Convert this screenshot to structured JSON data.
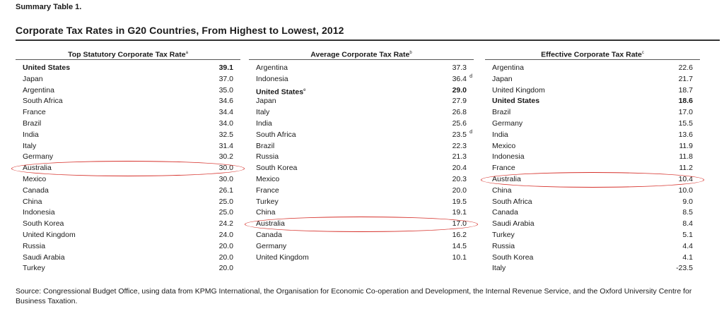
{
  "label": "Summary Table 1.",
  "title": "Corporate Tax Rates in G20 Countries, From Highest to Lowest, 2012",
  "panels": [
    {
      "header": "Top Statutory Corporate Tax Rate",
      "header_note": "a",
      "rows": [
        {
          "country": "United States",
          "value": "39.1",
          "bold": true
        },
        {
          "country": "Japan",
          "value": "37.0"
        },
        {
          "country": "Argentina",
          "value": "35.0"
        },
        {
          "country": "South Africa",
          "value": "34.6"
        },
        {
          "country": "France",
          "value": "34.4"
        },
        {
          "country": "Brazil",
          "value": "34.0"
        },
        {
          "country": "India",
          "value": "32.5"
        },
        {
          "country": "Italy",
          "value": "31.4"
        },
        {
          "country": "Germany",
          "value": "30.2"
        },
        {
          "country": "Australia",
          "value": "30.0",
          "highlight": true
        },
        {
          "country": "Mexico",
          "value": "30.0"
        },
        {
          "country": "Canada",
          "value": "26.1"
        },
        {
          "country": "China",
          "value": "25.0"
        },
        {
          "country": "Indonesia",
          "value": "25.0"
        },
        {
          "country": "South Korea",
          "value": "24.2"
        },
        {
          "country": "United Kingdom",
          "value": "24.0"
        },
        {
          "country": "Russia",
          "value": "20.0"
        },
        {
          "country": "Saudi Arabia",
          "value": "20.0"
        },
        {
          "country": "Turkey",
          "value": "20.0"
        }
      ]
    },
    {
      "header": "Average Corporate Tax Rate",
      "header_note": "b",
      "rows": [
        {
          "country": "Argentina",
          "value": "37.3"
        },
        {
          "country": "Indonesia",
          "value": "36.4",
          "note": "d"
        },
        {
          "country": "United States",
          "value": "29.0",
          "bold": true,
          "country_note": "e"
        },
        {
          "country": "Japan",
          "value": "27.9"
        },
        {
          "country": "Italy",
          "value": "26.8"
        },
        {
          "country": "India",
          "value": "25.6"
        },
        {
          "country": "South Africa",
          "value": "23.5",
          "note": "d"
        },
        {
          "country": "Brazil",
          "value": "22.3"
        },
        {
          "country": "Russia",
          "value": "21.3"
        },
        {
          "country": "South Korea",
          "value": "20.4"
        },
        {
          "country": "Mexico",
          "value": "20.3"
        },
        {
          "country": "France",
          "value": "20.0"
        },
        {
          "country": "Turkey",
          "value": "19.5"
        },
        {
          "country": "China",
          "value": "19.1"
        },
        {
          "country": "Australia",
          "value": "17.0",
          "highlight": true
        },
        {
          "country": "Canada",
          "value": "16.2"
        },
        {
          "country": "Germany",
          "value": "14.5"
        },
        {
          "country": "United Kingdom",
          "value": "10.1"
        }
      ]
    },
    {
      "header": "Effective Corporate Tax Rate",
      "header_note": "c",
      "rows": [
        {
          "country": "Argentina",
          "value": "22.6"
        },
        {
          "country": "Japan",
          "value": "21.7"
        },
        {
          "country": "United Kingdom",
          "value": "18.7"
        },
        {
          "country": "United States",
          "value": "18.6",
          "bold": true
        },
        {
          "country": "Brazil",
          "value": "17.0"
        },
        {
          "country": "Germany",
          "value": "15.5"
        },
        {
          "country": "India",
          "value": "13.6"
        },
        {
          "country": "Mexico",
          "value": "11.9"
        },
        {
          "country": "Indonesia",
          "value": "11.8"
        },
        {
          "country": "France",
          "value": "11.2"
        },
        {
          "country": "Australia",
          "value": "10.4",
          "highlight": true
        },
        {
          "country": "China",
          "value": "10.0"
        },
        {
          "country": "South Africa",
          "value": "9.0"
        },
        {
          "country": "Canada",
          "value": "8.5"
        },
        {
          "country": "Saudi Arabia",
          "value": "8.4"
        },
        {
          "country": "Turkey",
          "value": "5.1"
        },
        {
          "country": "Russia",
          "value": "4.4"
        },
        {
          "country": "South Korea",
          "value": "4.1"
        },
        {
          "country": "Italy",
          "value": "-23.5"
        }
      ]
    }
  ],
  "highlight_color": "#d6302a",
  "source": "Source: Congressional Budget Office, using data from KPMG International, the Organisation for Economic Co-operation and Development, the Internal Revenue Service, and the Oxford University Centre for Business Taxation."
}
